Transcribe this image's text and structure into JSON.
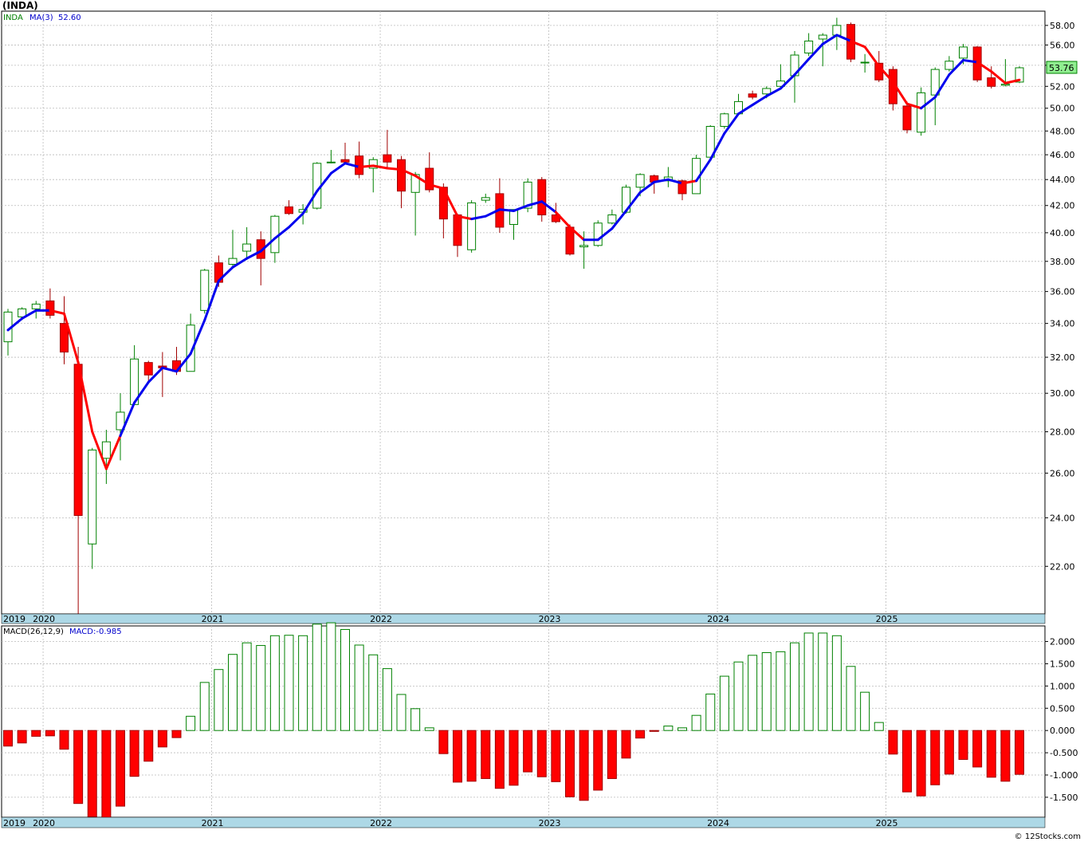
{
  "header": {
    "title": "(INDA)"
  },
  "price_legend": {
    "symbol": "INDA",
    "ma_label": "MA(3)",
    "ma_value": "52.60"
  },
  "macd_legend": {
    "label": "MACD(26,12,9)",
    "value_label": "MACD:-0.985"
  },
  "last_price_label": "53.76",
  "footer": {
    "copyright": "© 12Stocks.com"
  },
  "colors": {
    "up": "#008000",
    "down": "#ff0000",
    "ma_up": "#0000ee",
    "ma_down": "#ff0000",
    "axis_band": "#add8e6",
    "grid": "#bbbbbb",
    "last_price_bg": "#90ee90"
  },
  "chart_data": [
    {
      "type": "candlestick",
      "title": "(INDA)",
      "frequency": "monthly",
      "scale": "log",
      "ylim": [
        20.2,
        59.5
      ],
      "y_ticks": [
        "22.00",
        "24.00",
        "26.00",
        "28.00",
        "30.00",
        "32.00",
        "34.00",
        "36.00",
        "38.00",
        "40.00",
        "42.00",
        "44.00",
        "46.00",
        "48.00",
        "50.00",
        "52.00",
        "54.00",
        "56.00",
        "58.00"
      ],
      "x_labels": [
        "2019",
        "2020",
        "2021",
        "2022",
        "2023",
        "2024",
        "2025"
      ],
      "grid": true,
      "candles": [
        {
          "o": 32.9,
          "h": 34.9,
          "l": 32.1,
          "c": 34.7
        },
        {
          "o": 34.4,
          "h": 35.0,
          "l": 34.2,
          "c": 34.9
        },
        {
          "o": 34.9,
          "h": 35.4,
          "l": 34.3,
          "c": 35.2
        },
        {
          "o": 35.4,
          "h": 36.2,
          "l": 34.3,
          "c": 34.5
        },
        {
          "o": 34.0,
          "h": 35.7,
          "l": 31.6,
          "c": 32.3
        },
        {
          "o": 31.6,
          "h": 32.6,
          "l": 20.2,
          "c": 24.1
        },
        {
          "o": 22.9,
          "h": 27.2,
          "l": 21.9,
          "c": 27.1
        },
        {
          "o": 26.7,
          "h": 28.1,
          "l": 25.5,
          "c": 27.5
        },
        {
          "o": 28.1,
          "h": 30.0,
          "l": 26.6,
          "c": 29.0
        },
        {
          "o": 29.4,
          "h": 32.7,
          "l": 29.4,
          "c": 31.9
        },
        {
          "o": 31.7,
          "h": 31.8,
          "l": 30.6,
          "c": 31.0
        },
        {
          "o": 31.5,
          "h": 32.3,
          "l": 29.8,
          "c": 31.4
        },
        {
          "o": 31.8,
          "h": 32.6,
          "l": 31.0,
          "c": 31.2
        },
        {
          "o": 31.2,
          "h": 34.6,
          "l": 31.2,
          "c": 33.9
        },
        {
          "o": 34.8,
          "h": 37.5,
          "l": 34.6,
          "c": 37.4
        },
        {
          "o": 37.9,
          "h": 38.4,
          "l": 36.3,
          "c": 36.6
        },
        {
          "o": 37.8,
          "h": 40.2,
          "l": 37.6,
          "c": 38.2
        },
        {
          "o": 38.7,
          "h": 40.4,
          "l": 38.1,
          "c": 39.2
        },
        {
          "o": 39.5,
          "h": 40.1,
          "l": 36.4,
          "c": 38.2
        },
        {
          "o": 38.6,
          "h": 41.3,
          "l": 37.9,
          "c": 41.2
        },
        {
          "o": 41.9,
          "h": 42.4,
          "l": 41.3,
          "c": 41.4
        },
        {
          "o": 41.5,
          "h": 42.1,
          "l": 40.6,
          "c": 41.7
        },
        {
          "o": 41.8,
          "h": 45.4,
          "l": 41.7,
          "c": 45.3
        },
        {
          "o": 45.4,
          "h": 46.4,
          "l": 45.3,
          "c": 45.4
        },
        {
          "o": 45.6,
          "h": 47.0,
          "l": 45.3,
          "c": 45.4
        },
        {
          "o": 45.9,
          "h": 47.1,
          "l": 44.1,
          "c": 44.4
        },
        {
          "o": 44.9,
          "h": 45.8,
          "l": 43.0,
          "c": 45.6
        },
        {
          "o": 46.0,
          "h": 48.1,
          "l": 44.9,
          "c": 45.4
        },
        {
          "o": 45.6,
          "h": 45.9,
          "l": 41.8,
          "c": 43.1
        },
        {
          "o": 43.0,
          "h": 44.6,
          "l": 39.8,
          "c": 44.4
        },
        {
          "o": 44.9,
          "h": 46.2,
          "l": 43.0,
          "c": 43.2
        },
        {
          "o": 43.4,
          "h": 43.7,
          "l": 39.6,
          "c": 41.0
        },
        {
          "o": 41.3,
          "h": 41.4,
          "l": 38.3,
          "c": 39.1
        },
        {
          "o": 38.8,
          "h": 42.4,
          "l": 38.6,
          "c": 42.2
        },
        {
          "o": 42.4,
          "h": 42.9,
          "l": 42.2,
          "c": 42.6
        },
        {
          "o": 42.9,
          "h": 44.1,
          "l": 40.0,
          "c": 40.4
        },
        {
          "o": 40.6,
          "h": 41.6,
          "l": 39.5,
          "c": 41.7
        },
        {
          "o": 41.8,
          "h": 44.1,
          "l": 41.5,
          "c": 43.8
        },
        {
          "o": 44.0,
          "h": 44.2,
          "l": 40.8,
          "c": 41.3
        },
        {
          "o": 41.3,
          "h": 42.2,
          "l": 40.7,
          "c": 40.8
        },
        {
          "o": 40.4,
          "h": 40.6,
          "l": 38.4,
          "c": 38.5
        },
        {
          "o": 39.0,
          "h": 40.1,
          "l": 37.5,
          "c": 39.1
        },
        {
          "o": 39.1,
          "h": 40.9,
          "l": 39.0,
          "c": 40.7
        },
        {
          "o": 40.7,
          "h": 41.7,
          "l": 40.6,
          "c": 41.3
        },
        {
          "o": 41.5,
          "h": 43.6,
          "l": 41.4,
          "c": 43.4
        },
        {
          "o": 43.4,
          "h": 44.5,
          "l": 42.7,
          "c": 44.4
        },
        {
          "o": 44.3,
          "h": 44.4,
          "l": 42.9,
          "c": 43.8
        },
        {
          "o": 43.9,
          "h": 45.0,
          "l": 43.4,
          "c": 44.2
        },
        {
          "o": 43.9,
          "h": 44.0,
          "l": 42.4,
          "c": 42.9
        },
        {
          "o": 42.9,
          "h": 46.0,
          "l": 42.9,
          "c": 45.7
        },
        {
          "o": 45.8,
          "h": 48.5,
          "l": 45.7,
          "c": 48.4
        },
        {
          "o": 48.4,
          "h": 49.6,
          "l": 48.2,
          "c": 49.5
        },
        {
          "o": 49.5,
          "h": 51.3,
          "l": 49.4,
          "c": 50.6
        },
        {
          "o": 51.3,
          "h": 51.6,
          "l": 50.8,
          "c": 51.0
        },
        {
          "o": 51.3,
          "h": 52.0,
          "l": 50.9,
          "c": 51.8
        },
        {
          "o": 52.0,
          "h": 54.1,
          "l": 51.7,
          "c": 52.5
        },
        {
          "o": 53.0,
          "h": 55.4,
          "l": 50.5,
          "c": 55.0
        },
        {
          "o": 55.2,
          "h": 57.2,
          "l": 54.9,
          "c": 56.4
        },
        {
          "o": 56.6,
          "h": 57.2,
          "l": 53.9,
          "c": 57.0
        },
        {
          "o": 57.0,
          "h": 58.8,
          "l": 55.5,
          "c": 58.0
        },
        {
          "o": 58.1,
          "h": 58.3,
          "l": 54.3,
          "c": 54.6
        },
        {
          "o": 54.3,
          "h": 55.1,
          "l": 53.3,
          "c": 54.3
        },
        {
          "o": 54.2,
          "h": 55.4,
          "l": 52.4,
          "c": 52.6
        },
        {
          "o": 53.6,
          "h": 53.9,
          "l": 49.8,
          "c": 50.4
        },
        {
          "o": 50.2,
          "h": 50.6,
          "l": 47.8,
          "c": 48.1
        },
        {
          "o": 47.9,
          "h": 51.9,
          "l": 47.6,
          "c": 51.4
        },
        {
          "o": 51.2,
          "h": 53.8,
          "l": 48.5,
          "c": 53.6
        },
        {
          "o": 53.6,
          "h": 54.9,
          "l": 53.4,
          "c": 54.4
        },
        {
          "o": 54.7,
          "h": 56.1,
          "l": 54.1,
          "c": 55.8
        },
        {
          "o": 55.8,
          "h": 55.9,
          "l": 52.4,
          "c": 52.6
        },
        {
          "o": 52.8,
          "h": 53.9,
          "l": 51.8,
          "c": 52.0
        },
        {
          "o": 52.1,
          "h": 54.6,
          "l": 52.0,
          "c": 52.2
        },
        {
          "o": 52.4,
          "h": 53.9,
          "l": 52.3,
          "c": 53.76
        }
      ],
      "ma": [
        33.6,
        34.3,
        34.8,
        34.8,
        34.6,
        31.7,
        28.0,
        26.2,
        27.8,
        29.5,
        30.6,
        31.4,
        31.2,
        32.2,
        34.2,
        36.7,
        37.6,
        38.2,
        38.7,
        39.6,
        40.4,
        41.4,
        43.1,
        44.5,
        45.3,
        45.0,
        45.1,
        44.9,
        44.8,
        44.3,
        43.6,
        43.3,
        41.2,
        41.0,
        41.2,
        41.7,
        41.6,
        42.0,
        42.3,
        41.5,
        40.4,
        39.5,
        39.5,
        40.3,
        41.6,
        43.0,
        43.8,
        44.0,
        43.7,
        43.9,
        45.6,
        47.8,
        49.5,
        50.3,
        51.1,
        51.8,
        53.1,
        54.6,
        56.1,
        57.0,
        56.4,
        55.8,
        53.9,
        52.4,
        50.4,
        50.0,
        51.0,
        53.1,
        54.5,
        54.3,
        53.4,
        52.3,
        52.6
      ],
      "ma_trend": [
        "u",
        "u",
        "u",
        "d",
        "d",
        "d",
        "d",
        "d",
        "u",
        "u",
        "u",
        "u",
        "u",
        "u",
        "u",
        "u",
        "u",
        "u",
        "u",
        "u",
        "u",
        "u",
        "u",
        "u",
        "u",
        "d",
        "d",
        "d",
        "d",
        "d",
        "d",
        "d",
        "d",
        "u",
        "u",
        "u",
        "u",
        "u",
        "u",
        "d",
        "d",
        "u",
        "u",
        "u",
        "u",
        "u",
        "u",
        "u",
        "d",
        "u",
        "u",
        "u",
        "u",
        "u",
        "u",
        "u",
        "u",
        "u",
        "u",
        "u",
        "d",
        "d",
        "d",
        "d",
        "d",
        "u",
        "u",
        "u",
        "u",
        "d",
        "d",
        "d",
        "u"
      ]
    },
    {
      "type": "bar",
      "title": "MACD(26,12,9)",
      "ylim": [
        -1.95,
        2.35
      ],
      "y_ticks": [
        "-1.500",
        "-1.000",
        "-0.500",
        "0.000",
        "0.500",
        "1.000",
        "1.500",
        "2.000"
      ],
      "x_labels": [
        "2019",
        "2020",
        "2021",
        "2022",
        "2023",
        "2024",
        "2025"
      ],
      "grid": true,
      "values": [
        -0.35,
        -0.28,
        -0.13,
        -0.12,
        -0.42,
        -1.64,
        -1.94,
        -1.96,
        -1.7,
        -1.03,
        -0.69,
        -0.37,
        -0.16,
        0.32,
        1.08,
        1.37,
        1.71,
        1.97,
        1.91,
        2.13,
        2.14,
        2.13,
        2.39,
        2.42,
        2.27,
        1.92,
        1.7,
        1.39,
        0.81,
        0.49,
        0.06,
        -0.52,
        -1.16,
        -1.14,
        -1.08,
        -1.3,
        -1.23,
        -0.93,
        -1.04,
        -1.15,
        -1.49,
        -1.57,
        -1.34,
        -1.08,
        -0.62,
        -0.17,
        -0.02,
        0.1,
        0.06,
        0.34,
        0.82,
        1.22,
        1.54,
        1.69,
        1.75,
        1.77,
        1.97,
        2.19,
        2.19,
        2.13,
        1.44,
        0.86,
        0.18,
        -0.53,
        -1.38,
        -1.47,
        -1.22,
        -0.98,
        -0.65,
        -0.82,
        -1.05,
        -1.14,
        -0.985
      ]
    }
  ]
}
